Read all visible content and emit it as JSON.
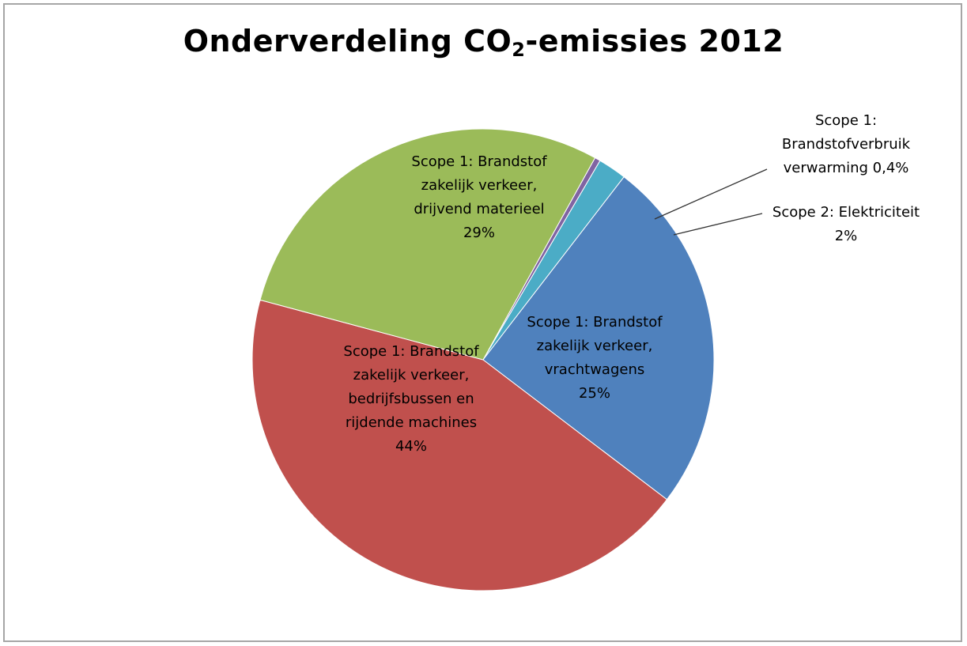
{
  "chart_data": {
    "type": "pie",
    "title_main": "Onderverdeling CO",
    "title_sub": "2",
    "title_rest": "-emissies 2012",
    "slices": [
      {
        "label": [
          "Scope 1:",
          "Brandstofverbruik",
          "verwarming 0,4%"
        ],
        "value": 0.4,
        "color": "#8064a2",
        "outside": true
      },
      {
        "label": [
          "Scope 2: Elektriciteit",
          "2%"
        ],
        "value": 2,
        "color": "#4bacc6",
        "outside": true
      },
      {
        "label": [
          "Scope 1: Brandstof",
          "zakelijk verkeer,",
          "vrachtwagens",
          "25%"
        ],
        "value": 25,
        "color": "#4f81bd",
        "outside": false
      },
      {
        "label": [
          "Scope 1: Brandstof",
          "zakelijk verkeer,",
          "bedrijfsbussen en",
          "rijdende machines",
          "44%"
        ],
        "value": 44,
        "color": "#c0504d",
        "outside": false
      },
      {
        "label": [
          "Scope 1: Brandstof",
          "zakelijk verkeer,",
          "drijvend materieel",
          "29%"
        ],
        "value": 29,
        "color": "#9bbb59",
        "outside": false
      }
    ]
  }
}
